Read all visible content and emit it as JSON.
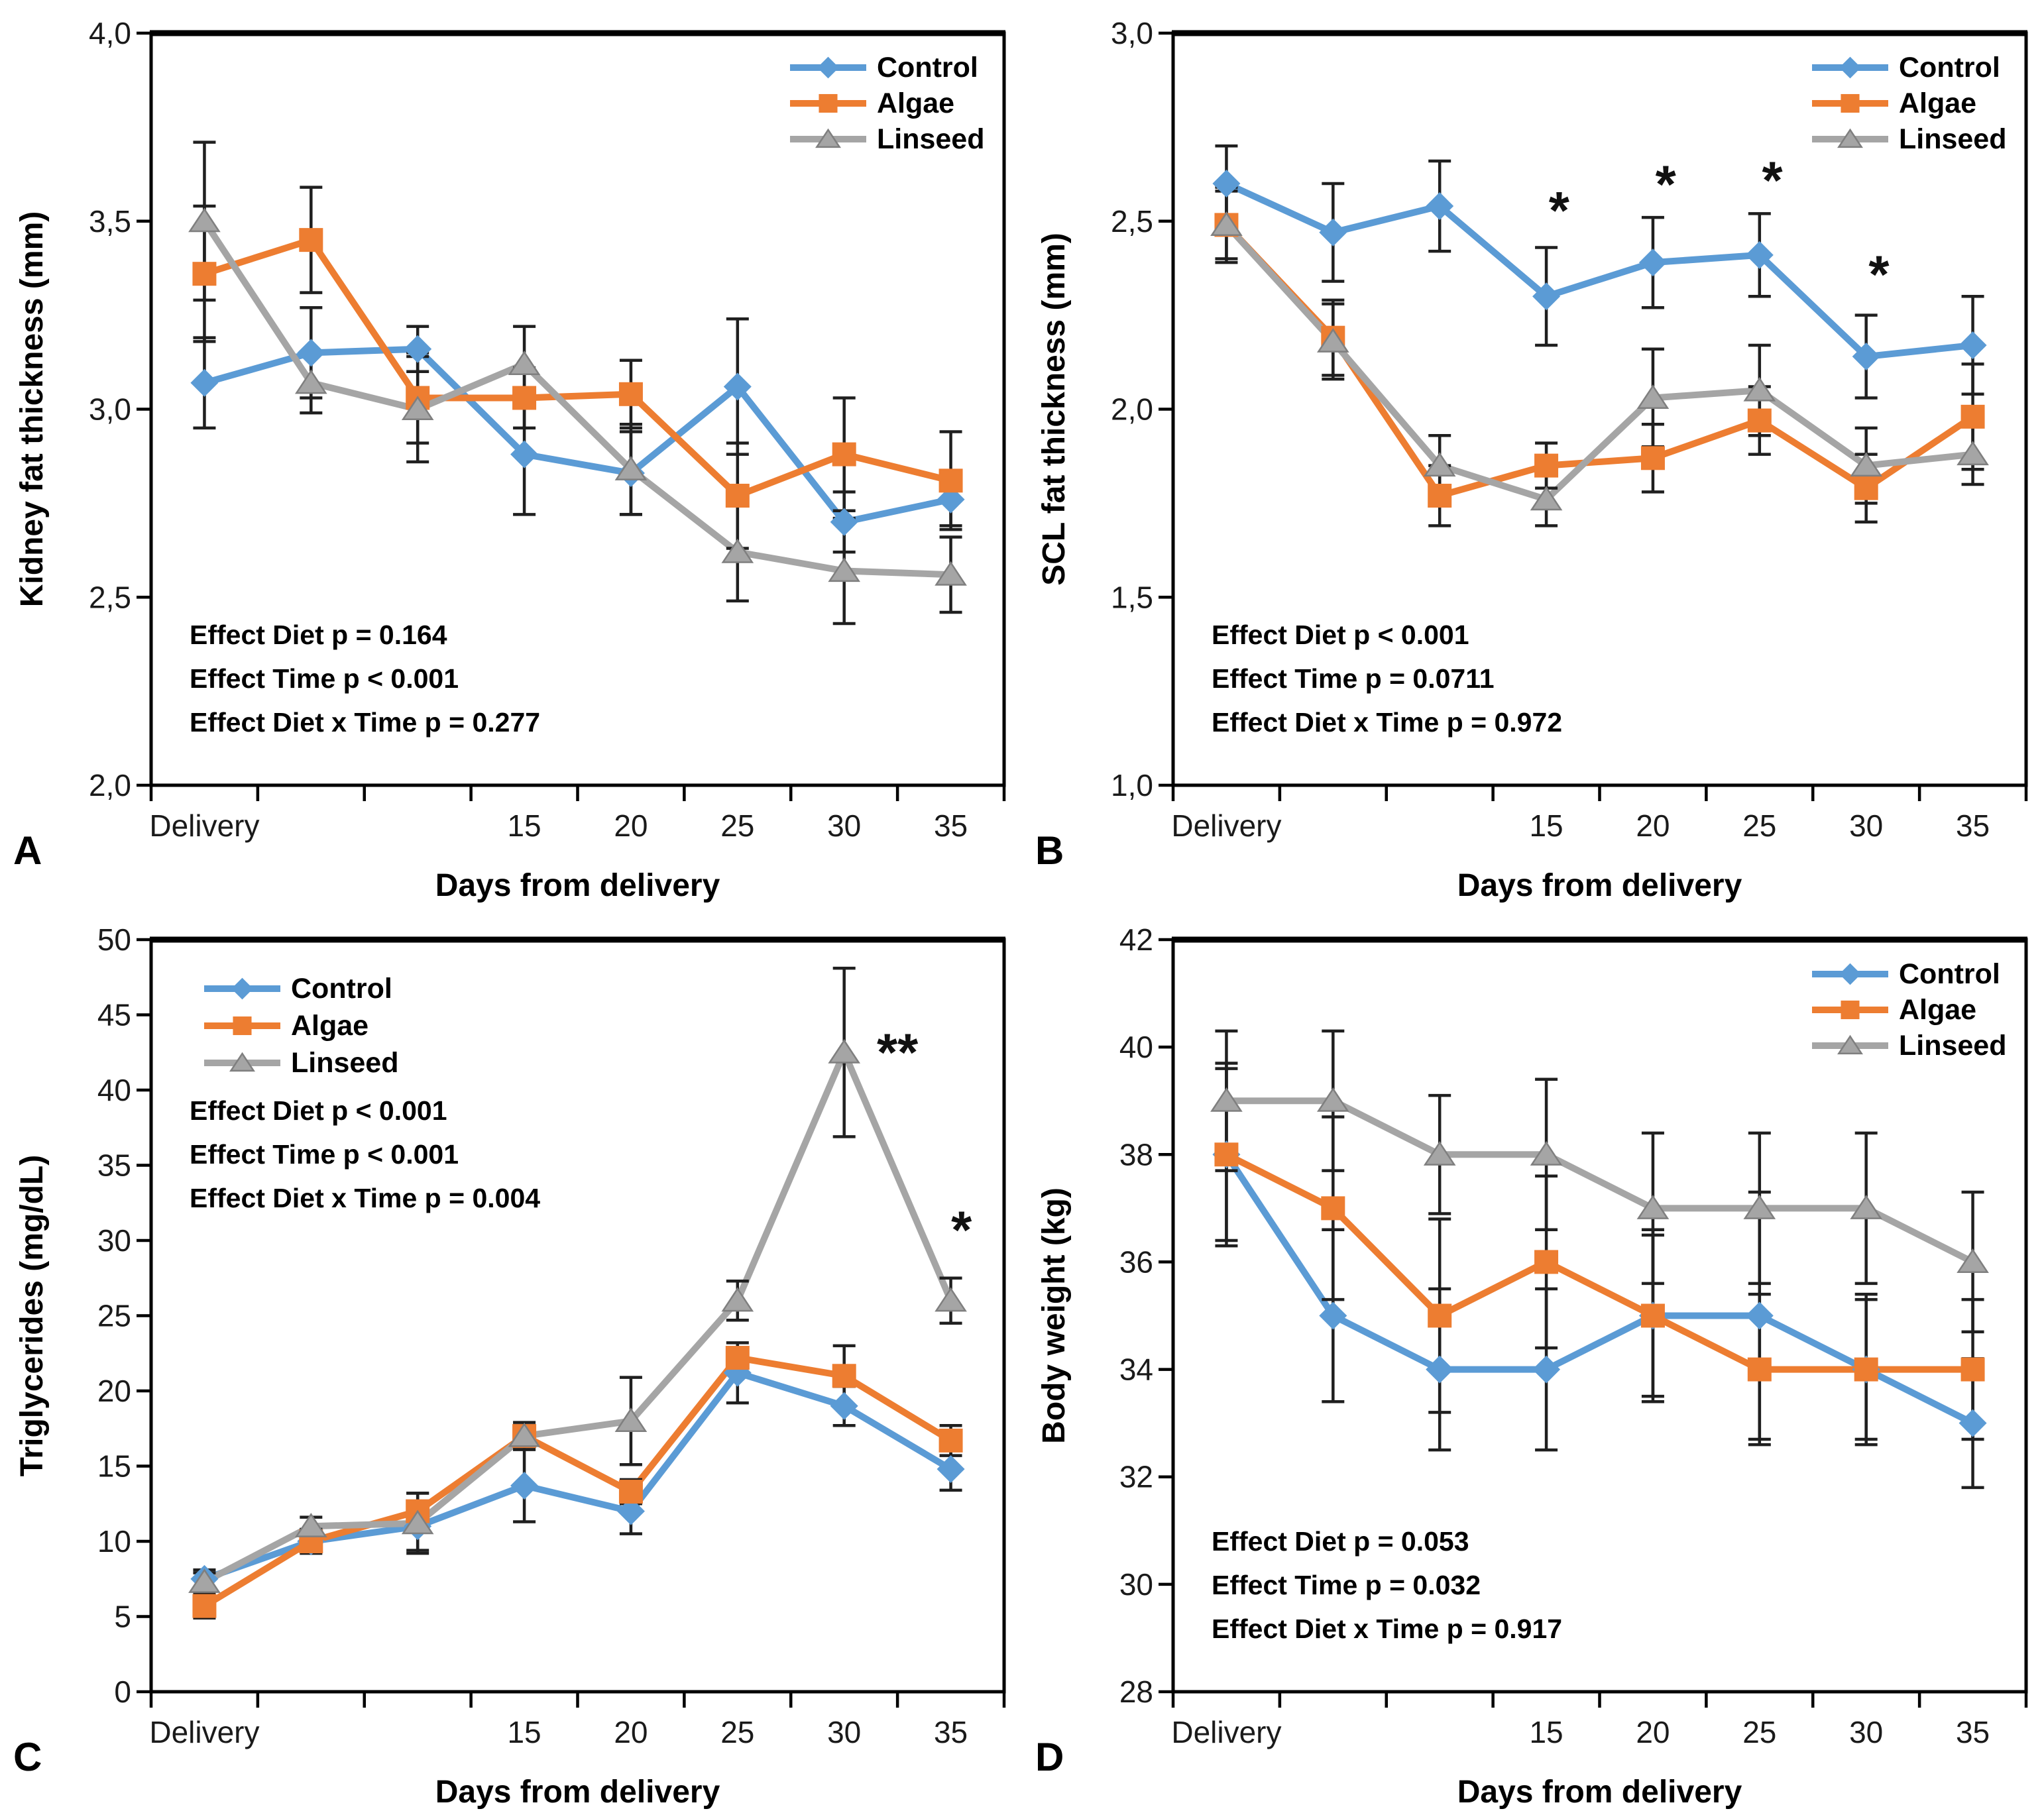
{
  "figure": {
    "colors": {
      "control": "#5B9BD5",
      "algae": "#ED7D31",
      "linseed": "#A5A5A5",
      "linseed_edge": "#7F7F7F",
      "error_bar": "#1f1f1f",
      "axis": "#000000"
    },
    "xlabel": "Days from delivery",
    "x_categories": [
      "Delivery",
      "",
      "",
      "15",
      "20",
      "25",
      "30",
      "35"
    ],
    "legend_labels": [
      "Control",
      "Algae",
      "Linseed"
    ]
  },
  "chart_data": [
    {
      "type": "line",
      "panel_label": "A",
      "ylabel": "Kidney fat thickness  (mm)",
      "xlabel": "Days from delivery",
      "ylim": [
        2.0,
        4.0
      ],
      "yticks": [
        2.0,
        2.5,
        3.0,
        3.5,
        4.0
      ],
      "ytick_labels": [
        "2,0",
        "2,5",
        "3,0",
        "3,5",
        "4,0"
      ],
      "x_categories": [
        "Delivery",
        "",
        "",
        "15",
        "20",
        "25",
        "30",
        "35"
      ],
      "legend_position": "top-right",
      "stats_position": "bottom-left",
      "grid": false,
      "series": [
        {
          "name": "Control",
          "marker": "diamond",
          "color": "#5B9BD5",
          "values": [
            3.07,
            3.15,
            3.16,
            2.88,
            2.83,
            3.06,
            2.7,
            2.76
          ],
          "errors": [
            0.12,
            0.12,
            0.06,
            0.16,
            0.11,
            0.18,
            0.08,
            0.07
          ]
        },
        {
          "name": "Algae",
          "marker": "square",
          "color": "#ED7D31",
          "values": [
            3.36,
            3.45,
            3.03,
            3.03,
            3.04,
            2.77,
            2.88,
            2.81
          ],
          "errors": [
            0.18,
            0.14,
            0.12,
            0.08,
            0.09,
            0.14,
            0.15,
            0.13
          ]
        },
        {
          "name": "Linseed",
          "marker": "triangle",
          "color": "#A5A5A5",
          "values": [
            3.5,
            3.07,
            3.0,
            3.12,
            2.84,
            2.62,
            2.57,
            2.56
          ],
          "errors": [
            0.21,
            0.08,
            0.14,
            0.1,
            0.12,
            0.13,
            0.14,
            0.1
          ]
        }
      ],
      "stats_lines": [
        "Effect Diet p = 0.164",
        "Effect Time p < 0.001",
        "Effect Diet x Time p = 0.277"
      ],
      "annotations": []
    },
    {
      "type": "line",
      "panel_label": "B",
      "ylabel": "SCL fat thickness  (mm)",
      "xlabel": "Days from delivery",
      "ylim": [
        1.0,
        3.0
      ],
      "yticks": [
        1.0,
        1.5,
        2.0,
        2.5,
        3.0
      ],
      "ytick_labels": [
        "1,0",
        "1,5",
        "2,0",
        "2,5",
        "3,0"
      ],
      "x_categories": [
        "Delivery",
        "",
        "",
        "15",
        "20",
        "25",
        "30",
        "35"
      ],
      "legend_position": "top-right",
      "stats_position": "bottom-left",
      "grid": false,
      "series": [
        {
          "name": "Control",
          "marker": "diamond",
          "color": "#5B9BD5",
          "values": [
            2.6,
            2.47,
            2.54,
            2.3,
            2.39,
            2.41,
            2.14,
            2.17
          ],
          "errors": [
            0.1,
            0.13,
            0.12,
            0.13,
            0.12,
            0.11,
            0.11,
            0.13
          ]
        },
        {
          "name": "Algae",
          "marker": "square",
          "color": "#ED7D31",
          "values": [
            2.49,
            2.19,
            1.77,
            1.85,
            1.87,
            1.97,
            1.79,
            1.98
          ],
          "errors": [
            0.09,
            0.1,
            0.08,
            0.06,
            0.09,
            0.09,
            0.09,
            0.14
          ]
        },
        {
          "name": "Linseed",
          "marker": "triangle",
          "color": "#A5A5A5",
          "values": [
            2.49,
            2.18,
            1.85,
            1.76,
            2.03,
            2.05,
            1.85,
            1.88
          ],
          "errors": [
            0.1,
            0.1,
            0.08,
            0.07,
            0.13,
            0.12,
            0.1,
            0.08
          ]
        }
      ],
      "stats_lines": [
        "Effect Diet p < 0.001",
        "Effect Time p = 0.0711",
        "Effect Diet x Time p = 0.972"
      ],
      "annotations": [
        {
          "x": 3,
          "dx": 0.12,
          "y": 2.48,
          "text": "*"
        },
        {
          "x": 4,
          "dx": 0.12,
          "y": 2.55,
          "text": "*"
        },
        {
          "x": 5,
          "dx": 0.12,
          "y": 2.56,
          "text": "*"
        },
        {
          "x": 6,
          "dx": 0.12,
          "y": 2.31,
          "text": "*"
        }
      ]
    },
    {
      "type": "line",
      "panel_label": "C",
      "ylabel": "Triglycerides  (mg/dL)",
      "xlabel": "Days from delivery",
      "ylim": [
        0,
        50
      ],
      "yticks": [
        0,
        5,
        10,
        15,
        20,
        25,
        30,
        35,
        40,
        45,
        50
      ],
      "ytick_labels": [
        "0",
        "5",
        "10",
        "15",
        "20",
        "25",
        "30",
        "35",
        "40",
        "45",
        "50"
      ],
      "x_categories": [
        "Delivery",
        "",
        "",
        "15",
        "20",
        "25",
        "30",
        "35"
      ],
      "legend_position": "top-left",
      "stats_position": "top-left",
      "grid": false,
      "series": [
        {
          "name": "Control",
          "marker": "diamond",
          "color": "#5B9BD5",
          "values": [
            7.5,
            10.0,
            11.0,
            13.7,
            12.0,
            21.2,
            19.0,
            14.8
          ],
          "errors": [
            0.6,
            0.7,
            1.6,
            2.4,
            1.5,
            2.0,
            1.3,
            1.4
          ]
        },
        {
          "name": "Algae",
          "marker": "square",
          "color": "#ED7D31",
          "values": [
            5.7,
            10.0,
            12.0,
            17.0,
            13.3,
            22.2,
            21.0,
            16.7
          ],
          "errors": [
            0.8,
            0.8,
            1.2,
            0.9,
            0.8,
            0.6,
            2.0,
            1.0
          ]
        },
        {
          "name": "Linseed",
          "marker": "triangle",
          "color": "#A5A5A5",
          "values": [
            7.3,
            11.0,
            11.2,
            17.0,
            18.0,
            26.0,
            42.5,
            26.0
          ],
          "errors": [
            0.6,
            0.6,
            2.0,
            0.7,
            2.9,
            1.3,
            5.6,
            1.5
          ]
        }
      ],
      "stats_lines": [
        "Effect Diet p < 0.001",
        "Effect Time p < 0.001",
        "Effect Diet x Time p = 0.004"
      ],
      "annotations": [
        {
          "x": 6,
          "dx": 0.5,
          "y": 41.3,
          "text": "**"
        },
        {
          "x": 7,
          "dx": 0.1,
          "y": 29.5,
          "text": "*"
        }
      ]
    },
    {
      "type": "line",
      "panel_label": "D",
      "ylabel": "Body weight  (kg)",
      "xlabel": "Days from delivery",
      "ylim": [
        28,
        42
      ],
      "yticks": [
        28,
        30,
        32,
        34,
        36,
        38,
        40,
        42
      ],
      "ytick_labels": [
        "28",
        "30",
        "32",
        "34",
        "36",
        "38",
        "40",
        "42"
      ],
      "x_categories": [
        "Delivery",
        "",
        "",
        "15",
        "20",
        "25",
        "30",
        "35"
      ],
      "legend_position": "top-right",
      "stats_position": "bottom-left",
      "grid": false,
      "series": [
        {
          "name": "Control",
          "marker": "diamond",
          "color": "#5B9BD5",
          "values": [
            38,
            35,
            34,
            34,
            35,
            35,
            34,
            33
          ],
          "errors": [
            1.6,
            1.6,
            1.5,
            1.5,
            1.5,
            2.3,
            1.4,
            1.2
          ]
        },
        {
          "name": "Algae",
          "marker": "square",
          "color": "#ED7D31",
          "values": [
            38,
            37,
            35,
            36,
            35,
            34,
            34,
            34
          ],
          "errors": [
            1.7,
            1.7,
            1.8,
            1.6,
            1.6,
            1.4,
            1.3,
            1.3
          ]
        },
        {
          "name": "Linseed",
          "marker": "triangle",
          "color": "#A5A5A5",
          "values": [
            39,
            39,
            38,
            38,
            37,
            37,
            37,
            36
          ],
          "errors": [
            1.3,
            1.3,
            1.1,
            1.4,
            1.4,
            1.4,
            1.4,
            1.3
          ]
        }
      ],
      "stats_lines": [
        "Effect Diet p = 0.053",
        "Effect Time p = 0.032",
        "Effect Diet x Time p = 0.917"
      ],
      "annotations": []
    }
  ]
}
